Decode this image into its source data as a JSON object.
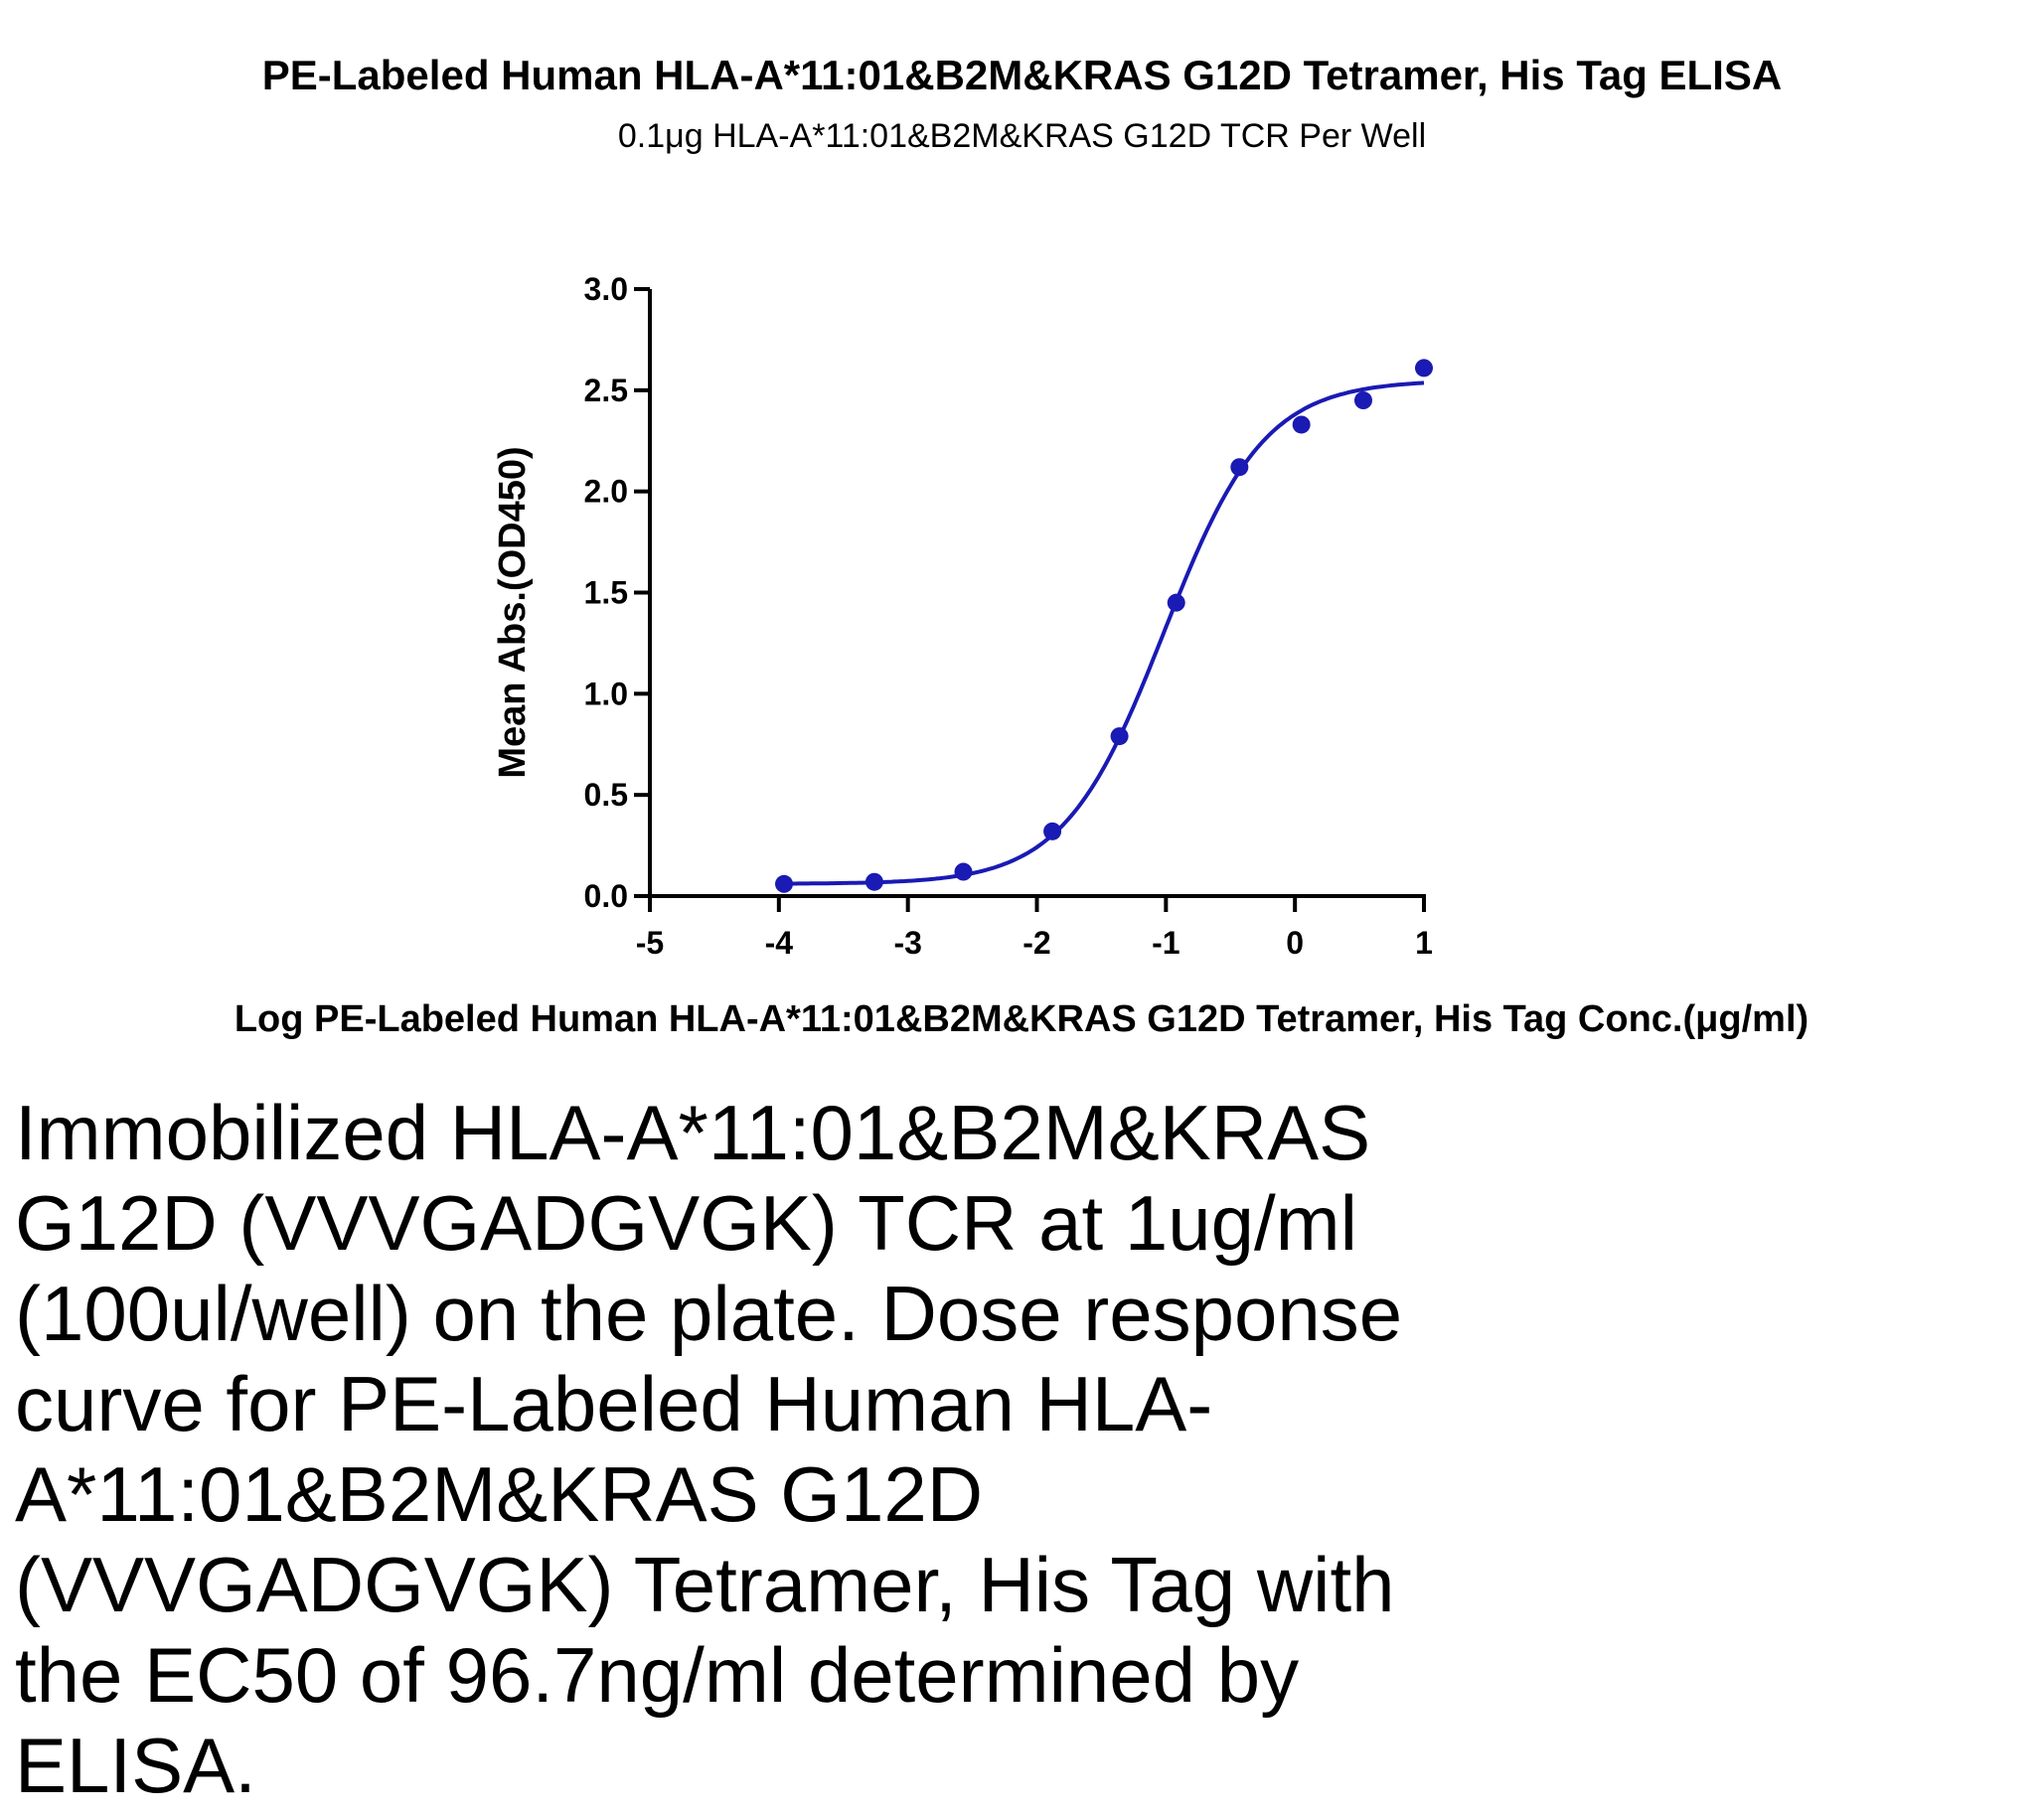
{
  "chart_data": {
    "type": "scatter",
    "title": "PE-Labeled Human HLA-A*11:01&B2M&KRAS G12D Tetramer, His Tag ELISA",
    "subtitle": "0.1μg HLA-A*11:01&B2M&KRAS G12D TCR Per Well",
    "xlabel": "Log PE-Labeled Human HLA-A*11:01&B2M&KRAS G12D Tetramer, His Tag Conc.(μg/ml)",
    "ylabel": "Mean Abs.(OD450)",
    "xlim": [
      -5,
      1
    ],
    "ylim": [
      0,
      3
    ],
    "xticks": [
      "-5",
      "-4",
      "-3",
      "-2",
      "-1",
      "0",
      "1"
    ],
    "yticks": [
      "0.0",
      "0.5",
      "1.0",
      "1.5",
      "2.0",
      "2.5",
      "3.0"
    ],
    "series": [
      {
        "x": [
          -3.96,
          -3.26,
          -2.57,
          -1.88,
          -1.36,
          -0.92,
          -0.43,
          0.05,
          0.53,
          1.0
        ],
        "y": [
          0.06,
          0.07,
          0.12,
          0.32,
          0.79,
          1.45,
          2.12,
          2.33,
          2.45,
          2.61
        ],
        "fit": "sigmoidal dose-response",
        "color": "#1a1ab4"
      }
    ],
    "grid": false
  },
  "caption": "Immobilized HLA-A*11:01&B2M&KRAS G12D (VVVGADGVGK) TCR at 1ug/ml (100ul/well) on the plate. Dose response curve for PE-Labeled Human HLA-A*11:01&B2M&KRAS G12D (VVVGADGVGK) Tetramer, His Tag with the EC50 of 96.7ng/ml determined by ELISA."
}
